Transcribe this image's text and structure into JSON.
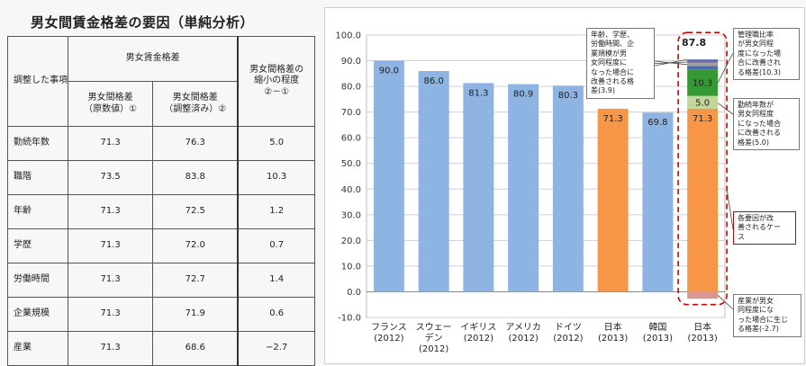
{
  "table": {
    "title": "男女間賃金格差の要因（単純分析）",
    "header_item": "調整した事項",
    "header_group": "男女賃金格差",
    "header_orig": "男女間格差\n（原数値）①",
    "header_adj": "男女間格差\n（調整済み）②",
    "header_shrink": "男女間格差の\n縮小の程度\n②－①",
    "rows": [
      {
        "item": "勤続年数",
        "orig": "71.3",
        "adj": "76.3",
        "diff": "5.0"
      },
      {
        "item": "職階",
        "orig": "73.5",
        "adj": "83.8",
        "diff": "10.3"
      },
      {
        "item": "年齢",
        "orig": "71.3",
        "adj": "72.5",
        "diff": "1.2"
      },
      {
        "item": "学歴",
        "orig": "71.3",
        "adj": "72.0",
        "diff": "0.7"
      },
      {
        "item": "労働時間",
        "orig": "71.3",
        "adj": "72.7",
        "diff": "1.4"
      },
      {
        "item": "企業規模",
        "orig": "71.3",
        "adj": "71.9",
        "diff": "0.6"
      },
      {
        "item": "産業",
        "orig": "71.3",
        "adj": "68.6",
        "diff": "−2.7"
      }
    ]
  },
  "colors": {
    "blue": "#8db4e2",
    "orange": "#f79646",
    "green": "#339933",
    "light_green": "#c3d69b",
    "pink": "#d99694",
    "navy": "#4f6aa8",
    "gray": "#9aa0a6",
    "purple": "#8064a2",
    "red_dashed": "#cc0000"
  },
  "chart_data": {
    "type": "bar",
    "ylim": [
      -10,
      100
    ],
    "yticks": [
      "100.0",
      "90.0",
      "80.0",
      "70.0",
      "60.0",
      "50.0",
      "40.0",
      "30.0",
      "20.0",
      "10.0",
      "0.0",
      "-10.0"
    ],
    "categories": [
      {
        "label": "フランス\n(2012)",
        "value": 90.0,
        "color": "blue",
        "value_label": "90.0"
      },
      {
        "label": "スウェー\nデン\n(2012)",
        "value": 86.0,
        "color": "blue",
        "value_label": "86.0"
      },
      {
        "label": "イギリス\n(2012)",
        "value": 81.3,
        "color": "blue",
        "value_label": "81.3"
      },
      {
        "label": "アメリカ\n(2012)",
        "value": 80.9,
        "color": "blue",
        "value_label": "80.9"
      },
      {
        "label": "ドイツ\n(2012)",
        "value": 80.3,
        "color": "blue",
        "value_label": "80.3"
      },
      {
        "label": "日本\n(2013)",
        "value": 71.3,
        "color": "orange",
        "value_label": "71.3"
      },
      {
        "label": "韓国\n(2013)",
        "value": 69.8,
        "color": "blue",
        "value_label": "69.8"
      }
    ],
    "stacked": {
      "label": "日本\n(2013)",
      "segments": [
        {
          "value": 71.3,
          "color": "orange",
          "label": "71.3"
        },
        {
          "value": 5.0,
          "color": "light_green",
          "label": "5.0"
        },
        {
          "value": 10.3,
          "color": "green",
          "label": "10.3"
        },
        {
          "value": 1.4,
          "color": "navy",
          "label": ""
        },
        {
          "value": 1.2,
          "color": "gray",
          "label": ""
        },
        {
          "value": 0.7,
          "color": "purple",
          "label": ""
        },
        {
          "value": 0.6,
          "color": "navy",
          "label": ""
        }
      ],
      "negative": {
        "value": -2.7,
        "color": "pink"
      },
      "total_label": "87.8"
    },
    "callouts": {
      "misc": "年齢、学歴、\n労働時間、企\n業規模が男\n女同程度に\nなった場合に\n改善される格\n差(3.9)",
      "rank": "管理職比率\nが男女同程\n度になった場\n合に改善され\nる格差(10.3)",
      "tenure": "勤続年数が\n男女同程度\nになった場合\nに改善される\n格差(5.0)",
      "cases": "各要因が改\n善されるケー\nス",
      "industry": "産業が男女\n同程度にな\nった場合に生じ\nる格差(-2.7)"
    }
  }
}
